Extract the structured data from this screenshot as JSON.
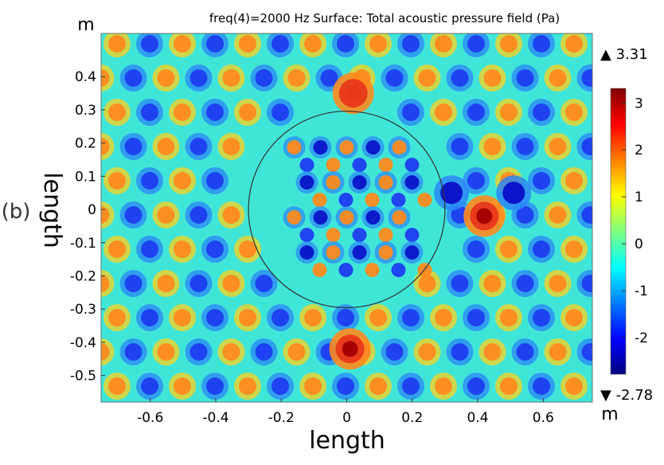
{
  "panel_label": "(b)",
  "chart_data": {
    "type": "heatmap",
    "title": "freq(4)=2000 Hz   Surface: Total acoustic pressure field (Pa)",
    "xlabel": "length",
    "ylabel": "length",
    "x_unit": "m",
    "y_unit": "m",
    "xlim": [
      -0.75,
      0.75
    ],
    "ylim": [
      -0.58,
      0.53
    ],
    "x_ticks": [
      -0.6,
      -0.4,
      -0.2,
      0,
      0.2,
      0.4,
      0.6
    ],
    "x_tick_labels": [
      "-0.6",
      "-0.4",
      "-0.2",
      "0",
      "0.2",
      "0.4",
      "0.6"
    ],
    "y_ticks": [
      0.4,
      0.3,
      0.2,
      0.1,
      0,
      -0.1,
      -0.2,
      -0.3,
      -0.4,
      -0.5
    ],
    "y_tick_labels": [
      "0.4",
      "0.3",
      "0.2",
      "0.1",
      "0",
      "-0.1",
      "-0.2",
      "-0.3",
      "-0.4",
      "-0.5"
    ],
    "colorbar": {
      "max_label": "▲ 3.31",
      "min_label": "▼ -2.78",
      "max": 3.31,
      "min": -2.78,
      "ticks": [
        3,
        2,
        1,
        0,
        -1,
        -2
      ],
      "tick_labels": [
        "3",
        "2",
        "1",
        "0",
        "-1",
        "-2"
      ],
      "colormap": [
        "#00007f",
        "#0000ff",
        "#007fff",
        "#00ffff",
        "#7fff7f",
        "#ffff00",
        "#ff7f00",
        "#ff0000",
        "#7f0000"
      ]
    },
    "circle": {
      "center": [
        0,
        0
      ],
      "radius": 0.3
    },
    "peaks": [
      {
        "x": 0.42,
        "y": -0.02,
        "value": 3.3
      },
      {
        "x": 0.01,
        "y": -0.42,
        "value": 3.2
      },
      {
        "x": 0.02,
        "y": 0.35,
        "value": 2.6
      }
    ],
    "troughs": [
      {
        "x": 0.32,
        "y": 0.05,
        "value": -2.3
      },
      {
        "x": 0.51,
        "y": 0.05,
        "value": -2.3
      }
    ],
    "grid": false
  }
}
